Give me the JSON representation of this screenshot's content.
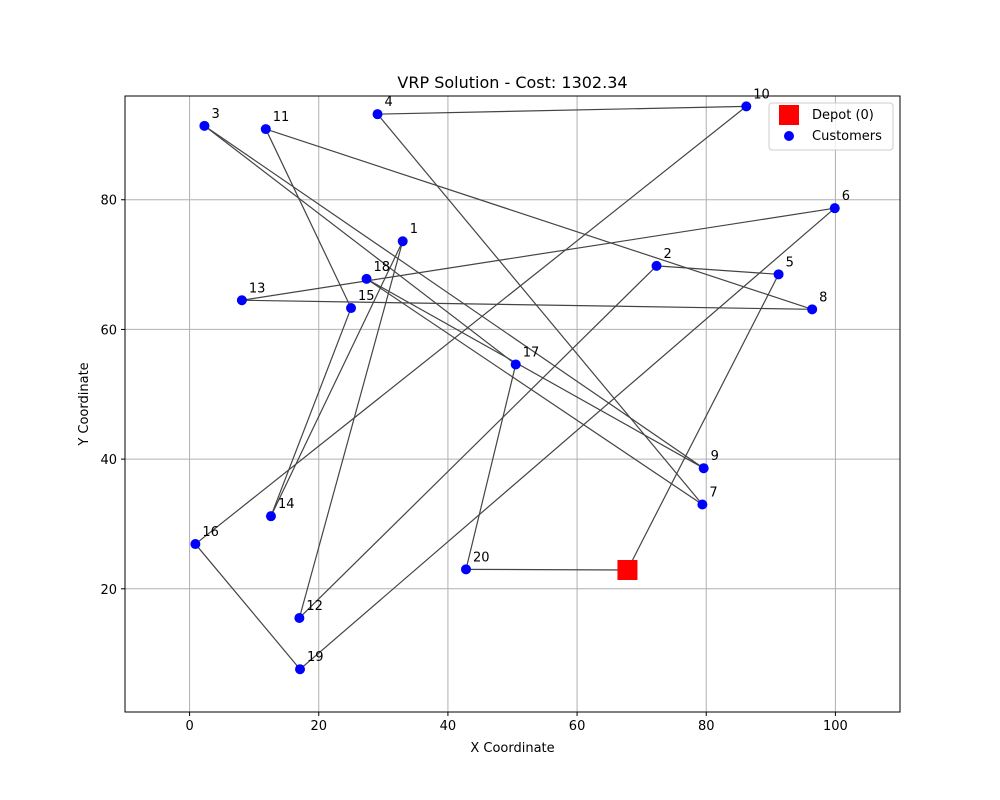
{
  "chart_data": {
    "type": "scatter",
    "title": "VRP Solution - Cost: 1302.34",
    "xlabel": "X Coordinate",
    "ylabel": "Y Coordinate",
    "xlim": [
      -10,
      110
    ],
    "ylim": [
      1,
      96
    ],
    "xticks": [
      0,
      20,
      40,
      60,
      80,
      100
    ],
    "yticks": [
      20,
      40,
      60,
      80
    ],
    "grid": true,
    "legend_position": "top-right",
    "legend": [
      {
        "label": "Depot (0)",
        "marker": "square",
        "color": "#ff0000"
      },
      {
        "label": "Customers",
        "marker": "circle",
        "color": "#0000ff"
      }
    ],
    "depot": {
      "id": "0",
      "x": 67.8,
      "y": 22.9
    },
    "customers": [
      {
        "id": "1",
        "x": 33.0,
        "y": 73.6
      },
      {
        "id": "2",
        "x": 72.3,
        "y": 69.8
      },
      {
        "id": "3",
        "x": 2.3,
        "y": 91.4
      },
      {
        "id": "4",
        "x": 29.1,
        "y": 93.2
      },
      {
        "id": "5",
        "x": 91.2,
        "y": 68.5
      },
      {
        "id": "6",
        "x": 99.9,
        "y": 78.7
      },
      {
        "id": "7",
        "x": 79.4,
        "y": 33.0
      },
      {
        "id": "8",
        "x": 96.4,
        "y": 63.1
      },
      {
        "id": "9",
        "x": 79.6,
        "y": 38.6
      },
      {
        "id": "10",
        "x": 86.2,
        "y": 94.4
      },
      {
        "id": "11",
        "x": 11.8,
        "y": 90.9
      },
      {
        "id": "12",
        "x": 17.0,
        "y": 15.5
      },
      {
        "id": "13",
        "x": 8.1,
        "y": 64.5
      },
      {
        "id": "14",
        "x": 12.6,
        "y": 31.2
      },
      {
        "id": "15",
        "x": 25.0,
        "y": 63.3
      },
      {
        "id": "16",
        "x": 0.9,
        "y": 26.9
      },
      {
        "id": "17",
        "x": 50.5,
        "y": 54.6
      },
      {
        "id": "18",
        "x": 27.4,
        "y": 67.8
      },
      {
        "id": "19",
        "x": 17.1,
        "y": 7.6
      },
      {
        "id": "20",
        "x": 42.8,
        "y": 23.0
      }
    ],
    "route": [
      "0",
      "20",
      "17",
      "3",
      "9",
      "18",
      "7",
      "4",
      "10",
      "16",
      "19",
      "6",
      "13",
      "8",
      "11",
      "15",
      "14",
      "1",
      "12",
      "2",
      "5",
      "0"
    ],
    "colors": {
      "depot": "#ff0000",
      "customer": "#0000ff",
      "route": "#444444",
      "grid": "#b0b0b0"
    }
  }
}
